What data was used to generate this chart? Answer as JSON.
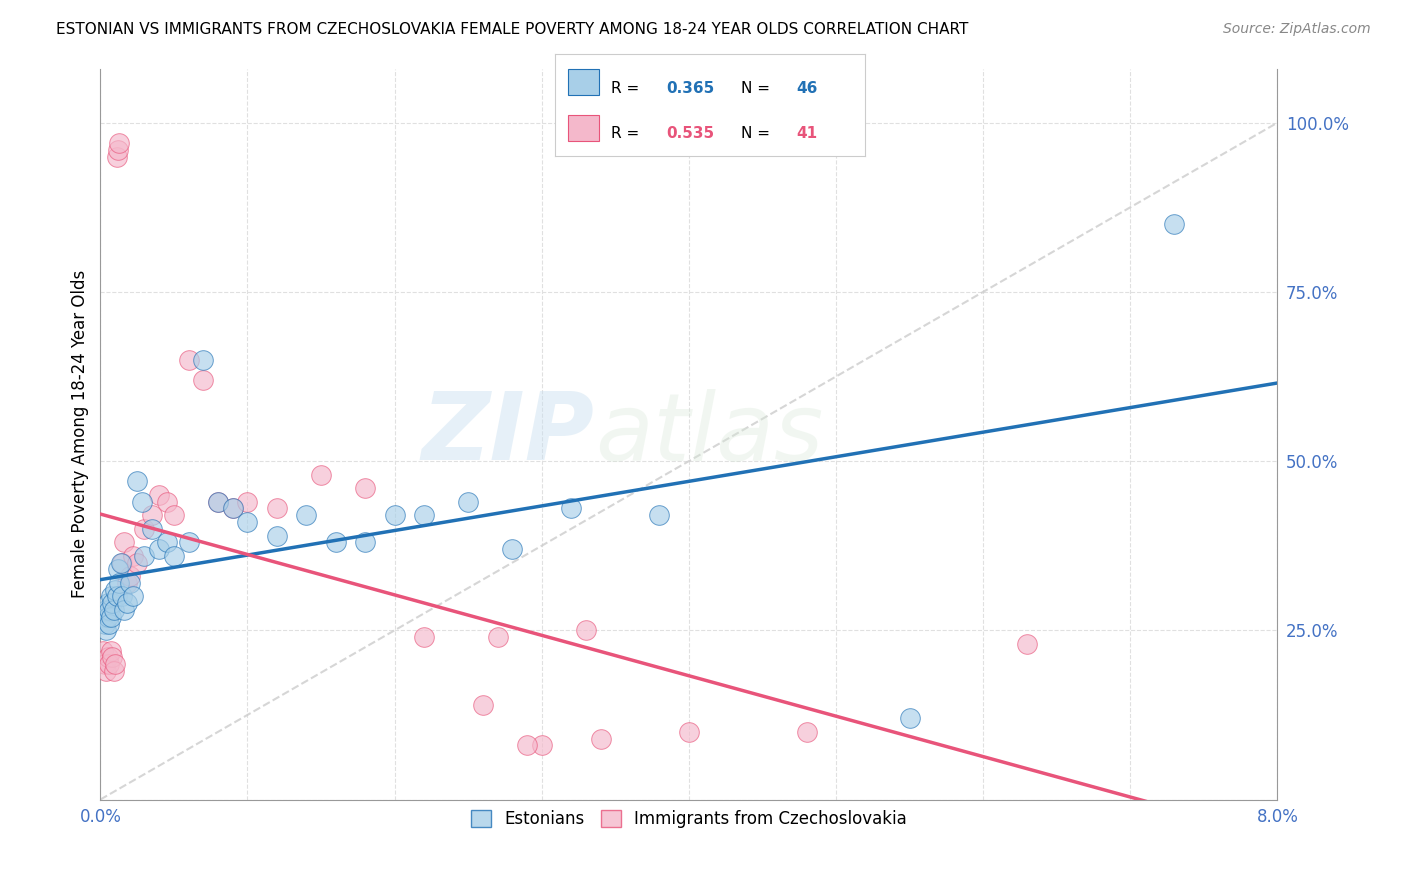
{
  "title": "ESTONIAN VS IMMIGRANTS FROM CZECHOSLOVAKIA FEMALE POVERTY AMONG 18-24 YEAR OLDS CORRELATION CHART",
  "source": "Source: ZipAtlas.com",
  "ylabel": "Female Poverty Among 18-24 Year Olds",
  "watermark_zip": "ZIP",
  "watermark_atlas": "atlas",
  "legend_estonians": "Estonians",
  "legend_immigrants": "Immigrants from Czechoslovakia",
  "R_estonians": 0.365,
  "N_estonians": 46,
  "R_immigrants": 0.535,
  "N_immigrants": 41,
  "color_estonians": "#a8cfe8",
  "color_immigrants": "#f4b8cb",
  "line_color_estonians": "#2171b5",
  "line_color_immigrants": "#e8547a",
  "diagonal_color": "#cccccc",
  "background_color": "#ffffff",
  "grid_color": "#e0e0e0",
  "tick_color": "#4472c4",
  "xlim": [
    0,
    0.08
  ],
  "ylim": [
    0,
    1.08
  ],
  "y_ticks": [
    0.0,
    0.25,
    0.5,
    0.75,
    1.0
  ],
  "y_tick_labels": [
    "",
    "25.0%",
    "50.0%",
    "75.0%",
    "100.0%"
  ],
  "x_tick_labels": [
    "0.0%",
    "8.0%"
  ],
  "estonians_x": [
    0.0002,
    0.0003,
    0.0004,
    0.0004,
    0.0005,
    0.0005,
    0.0006,
    0.0006,
    0.0007,
    0.0007,
    0.0008,
    0.0009,
    0.001,
    0.0011,
    0.0012,
    0.0013,
    0.0014,
    0.0015,
    0.0016,
    0.0018,
    0.002,
    0.0022,
    0.0025,
    0.0028,
    0.003,
    0.0035,
    0.004,
    0.0045,
    0.005,
    0.006,
    0.007,
    0.008,
    0.009,
    0.01,
    0.012,
    0.014,
    0.016,
    0.018,
    0.02,
    0.022,
    0.025,
    0.028,
    0.032,
    0.038,
    0.055,
    0.073
  ],
  "estonians_y": [
    0.27,
    0.26,
    0.28,
    0.25,
    0.29,
    0.27,
    0.28,
    0.26,
    0.3,
    0.27,
    0.29,
    0.28,
    0.31,
    0.3,
    0.34,
    0.32,
    0.35,
    0.3,
    0.28,
    0.29,
    0.32,
    0.3,
    0.47,
    0.44,
    0.36,
    0.4,
    0.37,
    0.38,
    0.36,
    0.38,
    0.65,
    0.44,
    0.43,
    0.41,
    0.39,
    0.42,
    0.38,
    0.38,
    0.42,
    0.42,
    0.44,
    0.37,
    0.43,
    0.42,
    0.12,
    0.85
  ],
  "immigrants_x": [
    0.0002,
    0.0003,
    0.0004,
    0.0005,
    0.0006,
    0.0007,
    0.0008,
    0.0009,
    0.001,
    0.0011,
    0.0012,
    0.0013,
    0.0015,
    0.0016,
    0.0018,
    0.002,
    0.0022,
    0.0025,
    0.003,
    0.0035,
    0.004,
    0.0045,
    0.005,
    0.006,
    0.007,
    0.008,
    0.009,
    0.01,
    0.012,
    0.015,
    0.018,
    0.022,
    0.026,
    0.03,
    0.034,
    0.04,
    0.048,
    0.033,
    0.027,
    0.063,
    0.029
  ],
  "immigrants_y": [
    0.22,
    0.2,
    0.19,
    0.21,
    0.2,
    0.22,
    0.21,
    0.19,
    0.2,
    0.95,
    0.96,
    0.97,
    0.35,
    0.38,
    0.32,
    0.33,
    0.36,
    0.35,
    0.4,
    0.42,
    0.45,
    0.44,
    0.42,
    0.65,
    0.62,
    0.44,
    0.43,
    0.44,
    0.43,
    0.48,
    0.46,
    0.24,
    0.14,
    0.08,
    0.09,
    0.1,
    0.1,
    0.25,
    0.24,
    0.23,
    0.08
  ]
}
